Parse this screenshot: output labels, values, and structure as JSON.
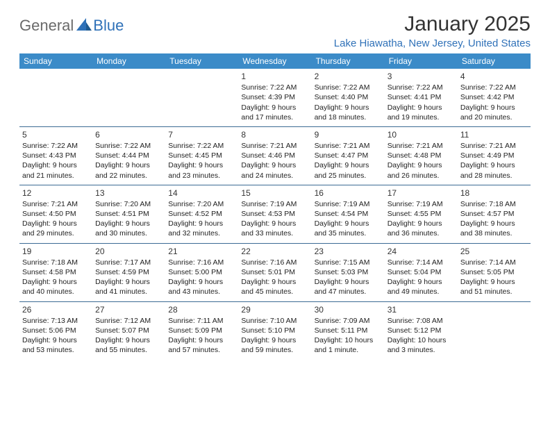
{
  "logo": {
    "general": "General",
    "blue": "Blue"
  },
  "title": "January 2025",
  "location": "Lake Hiawatha, New Jersey, United States",
  "colors": {
    "header_bg": "#3b8bc8",
    "header_text": "#ffffff",
    "border": "#3b6a94",
    "accent": "#2f71b8",
    "text": "#222222"
  },
  "day_headers": [
    "Sunday",
    "Monday",
    "Tuesday",
    "Wednesday",
    "Thursday",
    "Friday",
    "Saturday"
  ],
  "weeks": [
    [
      null,
      null,
      null,
      {
        "n": "1",
        "sr": "7:22 AM",
        "ss": "4:39 PM",
        "dl": "9 hours and 17 minutes."
      },
      {
        "n": "2",
        "sr": "7:22 AM",
        "ss": "4:40 PM",
        "dl": "9 hours and 18 minutes."
      },
      {
        "n": "3",
        "sr": "7:22 AM",
        "ss": "4:41 PM",
        "dl": "9 hours and 19 minutes."
      },
      {
        "n": "4",
        "sr": "7:22 AM",
        "ss": "4:42 PM",
        "dl": "9 hours and 20 minutes."
      }
    ],
    [
      {
        "n": "5",
        "sr": "7:22 AM",
        "ss": "4:43 PM",
        "dl": "9 hours and 21 minutes."
      },
      {
        "n": "6",
        "sr": "7:22 AM",
        "ss": "4:44 PM",
        "dl": "9 hours and 22 minutes."
      },
      {
        "n": "7",
        "sr": "7:22 AM",
        "ss": "4:45 PM",
        "dl": "9 hours and 23 minutes."
      },
      {
        "n": "8",
        "sr": "7:21 AM",
        "ss": "4:46 PM",
        "dl": "9 hours and 24 minutes."
      },
      {
        "n": "9",
        "sr": "7:21 AM",
        "ss": "4:47 PM",
        "dl": "9 hours and 25 minutes."
      },
      {
        "n": "10",
        "sr": "7:21 AM",
        "ss": "4:48 PM",
        "dl": "9 hours and 26 minutes."
      },
      {
        "n": "11",
        "sr": "7:21 AM",
        "ss": "4:49 PM",
        "dl": "9 hours and 28 minutes."
      }
    ],
    [
      {
        "n": "12",
        "sr": "7:21 AM",
        "ss": "4:50 PM",
        "dl": "9 hours and 29 minutes."
      },
      {
        "n": "13",
        "sr": "7:20 AM",
        "ss": "4:51 PM",
        "dl": "9 hours and 30 minutes."
      },
      {
        "n": "14",
        "sr": "7:20 AM",
        "ss": "4:52 PM",
        "dl": "9 hours and 32 minutes."
      },
      {
        "n": "15",
        "sr": "7:19 AM",
        "ss": "4:53 PM",
        "dl": "9 hours and 33 minutes."
      },
      {
        "n": "16",
        "sr": "7:19 AM",
        "ss": "4:54 PM",
        "dl": "9 hours and 35 minutes."
      },
      {
        "n": "17",
        "sr": "7:19 AM",
        "ss": "4:55 PM",
        "dl": "9 hours and 36 minutes."
      },
      {
        "n": "18",
        "sr": "7:18 AM",
        "ss": "4:57 PM",
        "dl": "9 hours and 38 minutes."
      }
    ],
    [
      {
        "n": "19",
        "sr": "7:18 AM",
        "ss": "4:58 PM",
        "dl": "9 hours and 40 minutes."
      },
      {
        "n": "20",
        "sr": "7:17 AM",
        "ss": "4:59 PM",
        "dl": "9 hours and 41 minutes."
      },
      {
        "n": "21",
        "sr": "7:16 AM",
        "ss": "5:00 PM",
        "dl": "9 hours and 43 minutes."
      },
      {
        "n": "22",
        "sr": "7:16 AM",
        "ss": "5:01 PM",
        "dl": "9 hours and 45 minutes."
      },
      {
        "n": "23",
        "sr": "7:15 AM",
        "ss": "5:03 PM",
        "dl": "9 hours and 47 minutes."
      },
      {
        "n": "24",
        "sr": "7:14 AM",
        "ss": "5:04 PM",
        "dl": "9 hours and 49 minutes."
      },
      {
        "n": "25",
        "sr": "7:14 AM",
        "ss": "5:05 PM",
        "dl": "9 hours and 51 minutes."
      }
    ],
    [
      {
        "n": "26",
        "sr": "7:13 AM",
        "ss": "5:06 PM",
        "dl": "9 hours and 53 minutes."
      },
      {
        "n": "27",
        "sr": "7:12 AM",
        "ss": "5:07 PM",
        "dl": "9 hours and 55 minutes."
      },
      {
        "n": "28",
        "sr": "7:11 AM",
        "ss": "5:09 PM",
        "dl": "9 hours and 57 minutes."
      },
      {
        "n": "29",
        "sr": "7:10 AM",
        "ss": "5:10 PM",
        "dl": "9 hours and 59 minutes."
      },
      {
        "n": "30",
        "sr": "7:09 AM",
        "ss": "5:11 PM",
        "dl": "10 hours and 1 minute."
      },
      {
        "n": "31",
        "sr": "7:08 AM",
        "ss": "5:12 PM",
        "dl": "10 hours and 3 minutes."
      },
      null
    ]
  ]
}
